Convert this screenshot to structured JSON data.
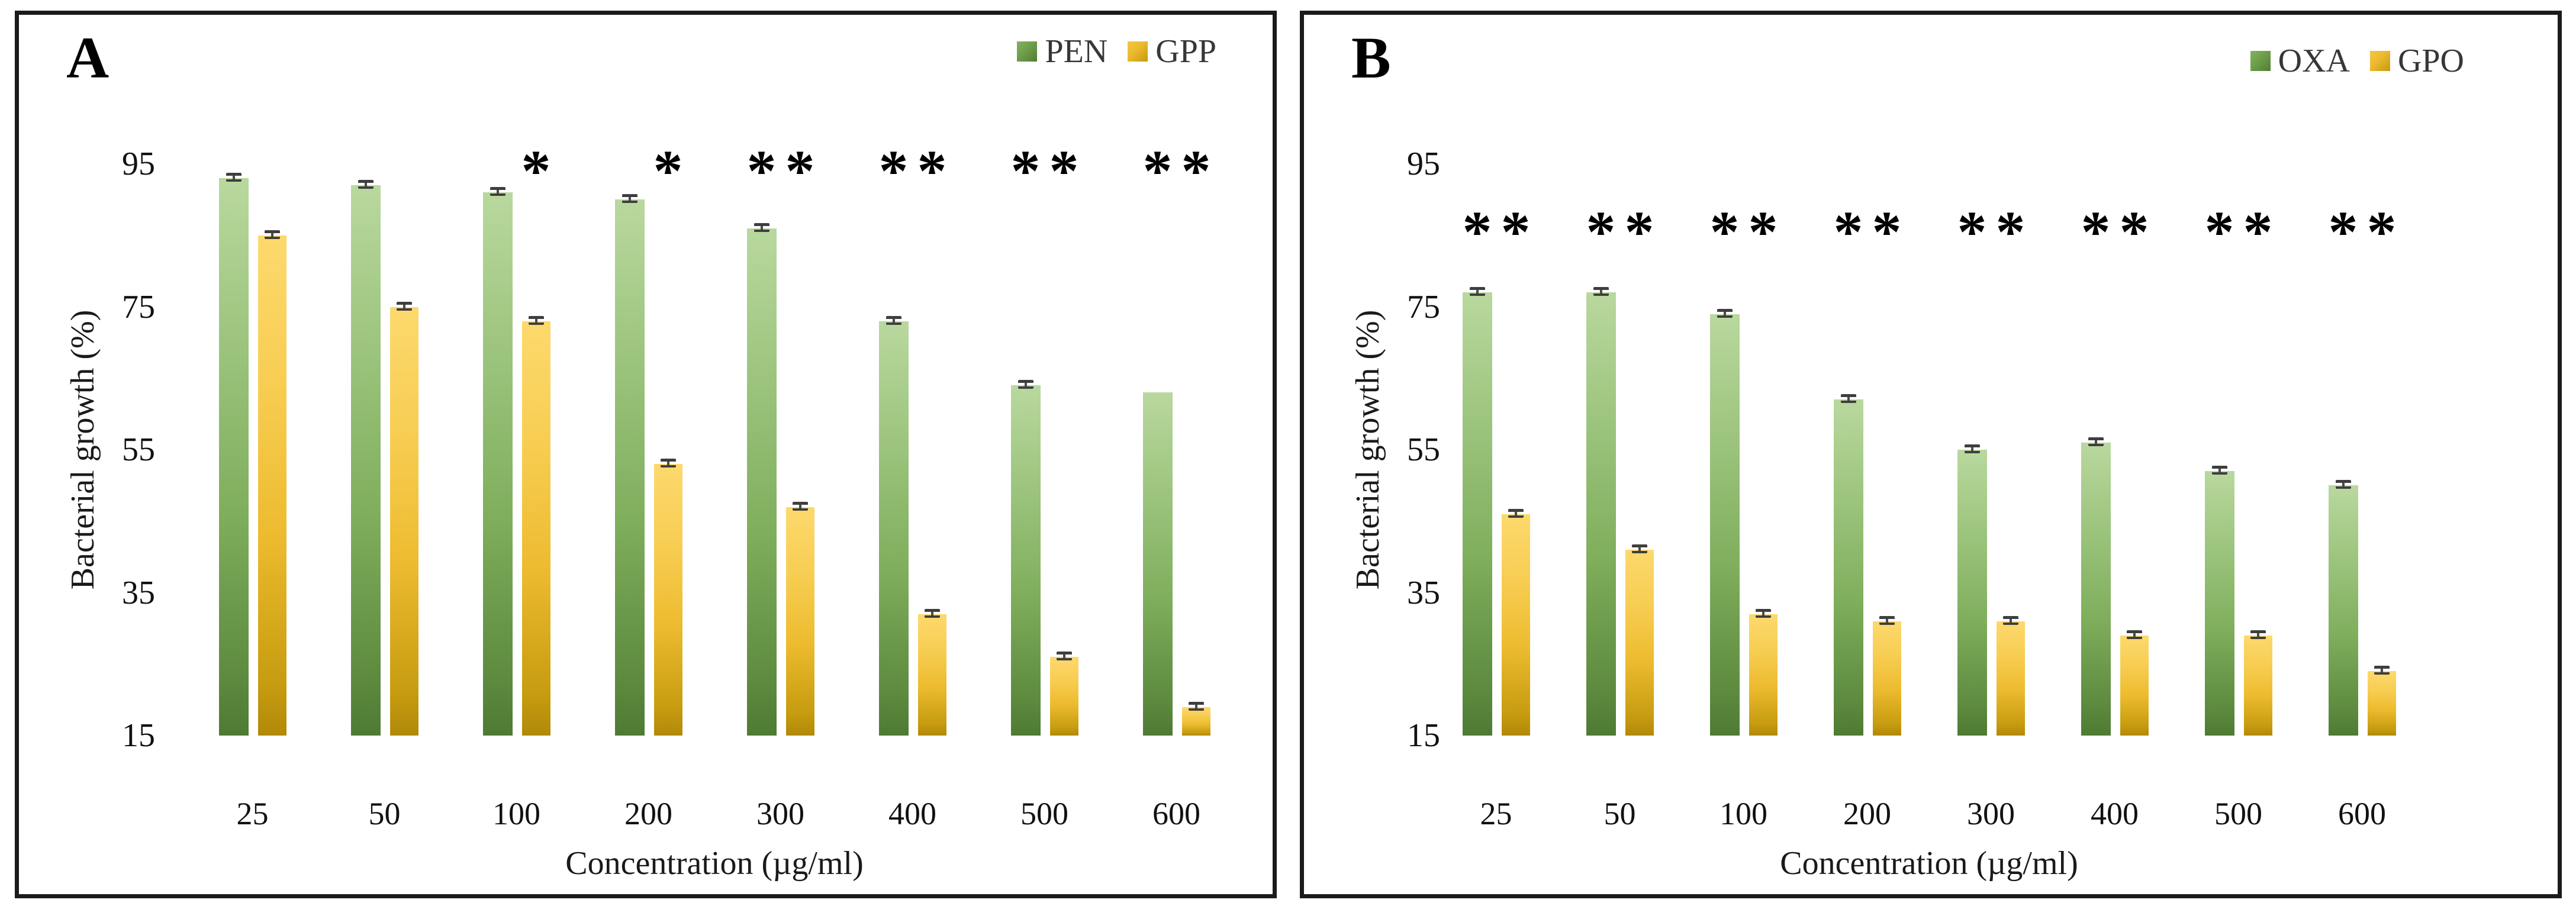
{
  "figure": {
    "y_axis_title": "Bacterial growth (%)",
    "x_axis_title": "Concentration (µg/ml)",
    "significance_marker": "*"
  },
  "colors": {
    "bar_green_top": "#b9d89e",
    "bar_green_bottom": "#4e7a33",
    "bar_yellow_top": "#fdd96d",
    "bar_yellow_bottom": "#b1890a",
    "error_cap": "#3e3e3e",
    "panel_border": "#1b1b1b",
    "text": "#1a1a1a",
    "legend_text": "#373737"
  },
  "chart_data": [
    {
      "type": "bar",
      "panel_label": "A",
      "title": "",
      "xlabel": "Concentration (µg/ml)",
      "ylabel": "Bacterial growth (%)",
      "categories": [
        "25",
        "50",
        "100",
        "200",
        "300",
        "400",
        "500",
        "600"
      ],
      "y_ticks": [
        95,
        75,
        55,
        35,
        15
      ],
      "ylim": [
        15,
        95
      ],
      "baseline": 15,
      "grid": false,
      "legend_position": "top-right",
      "error_bar_approx": 0.5,
      "significance_marker": "*",
      "sig_row_value": 95,
      "series": [
        {
          "name": "PEN",
          "color_key": "green",
          "values": [
            93,
            92,
            91,
            90,
            86,
            73,
            64,
            63
          ],
          "significant": [
            false,
            false,
            false,
            false,
            true,
            true,
            true,
            true
          ],
          "error_caps": [
            true,
            true,
            true,
            true,
            true,
            true,
            true,
            false
          ]
        },
        {
          "name": "GPP",
          "color_key": "yellow",
          "values": [
            85,
            75,
            73,
            53,
            47,
            32,
            26,
            19
          ],
          "significant": [
            false,
            false,
            true,
            true,
            true,
            true,
            true,
            true
          ],
          "error_caps": [
            true,
            true,
            true,
            true,
            true,
            true,
            true,
            true
          ]
        }
      ]
    },
    {
      "type": "bar",
      "panel_label": "B",
      "title": "",
      "xlabel": "Concentration (µg/ml)",
      "ylabel": "Bacterial growth (%)",
      "categories": [
        "25",
        "50",
        "100",
        "200",
        "300",
        "400",
        "500",
        "600"
      ],
      "y_ticks": [
        95,
        75,
        55,
        35,
        15
      ],
      "ylim": [
        15,
        95
      ],
      "baseline": 15,
      "grid": false,
      "legend_position": "top-right",
      "error_bar_approx": 0.5,
      "significance_marker": "*",
      "sig_row_value": 86.5,
      "series": [
        {
          "name": "OXA",
          "color_key": "green",
          "values": [
            77,
            77,
            74,
            62,
            55,
            56,
            52,
            50
          ],
          "significant": [
            true,
            true,
            true,
            true,
            true,
            true,
            true,
            true
          ],
          "error_caps": [
            true,
            true,
            true,
            true,
            true,
            true,
            true,
            true
          ]
        },
        {
          "name": "GPO",
          "color_key": "yellow",
          "values": [
            46,
            41,
            32,
            31,
            31,
            29,
            29,
            24
          ],
          "significant": [
            true,
            true,
            true,
            true,
            true,
            true,
            true,
            true
          ],
          "error_caps": [
            true,
            true,
            true,
            true,
            true,
            true,
            true,
            true
          ]
        }
      ]
    }
  ]
}
